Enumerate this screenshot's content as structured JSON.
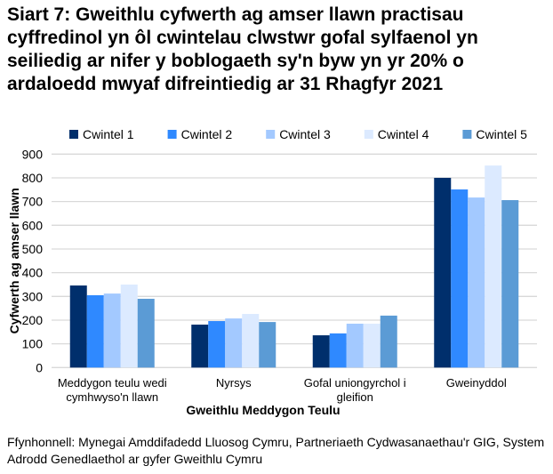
{
  "chart_data": {
    "type": "bar",
    "title": "Siart 7: Gweithlu cyfwerth ag amser llawn practisau cyffredinol yn ôl cwintelau clwstwr gofal sylfaenol yn seiliedig ar nifer y boblogaeth sy'n byw yn yr 20% o ardaloedd mwyaf difreintiedig ar 31 Rhagfyr 2021",
    "xlabel": "Gweithlu Meddygon Teulu",
    "ylabel": "Cyfwerth ag amser llawn",
    "ylim": [
      0,
      900
    ],
    "yticks": [
      0,
      100,
      200,
      300,
      400,
      500,
      600,
      700,
      800,
      900
    ],
    "grid": true,
    "legend_position": "top",
    "categories": [
      [
        "Meddygon teulu wedi",
        "cymhwyso'n llawn"
      ],
      [
        "Nyrsys"
      ],
      [
        "Gofal uniongyrchol i",
        "gleifion"
      ],
      [
        "Gweinyddol"
      ]
    ],
    "series": [
      {
        "name": "Cwintel 1",
        "color": "#002F6C",
        "values": [
          346,
          181,
          136,
          800
        ]
      },
      {
        "name": "Cwintel 2",
        "color": "#2F89FF",
        "values": [
          305,
          196,
          144,
          751
        ]
      },
      {
        "name": "Cwintel 3",
        "color": "#A3C9FF",
        "values": [
          312,
          207,
          185,
          717
        ]
      },
      {
        "name": "Cwintel 4",
        "color": "#DCEAFF",
        "values": [
          350,
          226,
          185,
          852
        ]
      },
      {
        "name": "Cwintel 5",
        "color": "#5B9BD5",
        "values": [
          290,
          192,
          219,
          706
        ]
      }
    ]
  },
  "source": "Ffynhonnell: Mynegai Amddifadedd Lluosog Cymru, Partneriaeth Cydwasanaethau'r GIG, System Adrodd Genedlaethol ar gyfer Gweithlu Cymru"
}
